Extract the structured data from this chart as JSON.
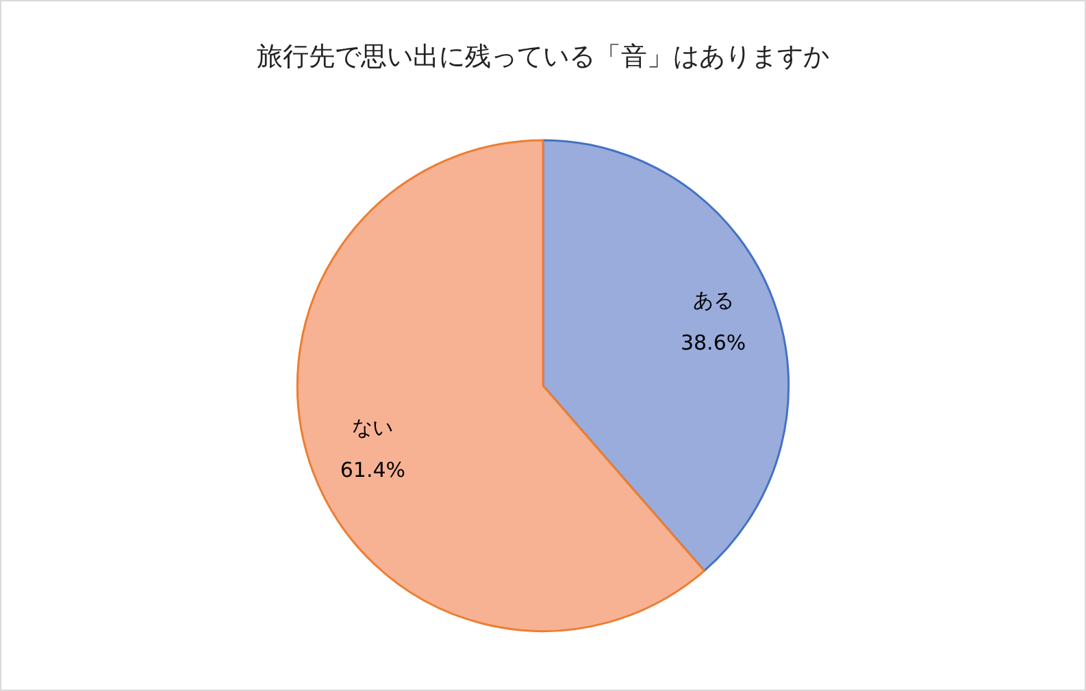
{
  "chart_data": {
    "type": "pie",
    "title": "旅行先で思い出に残っている「音」はありますか",
    "categories": [
      "ある",
      "ない"
    ],
    "values": [
      38.6,
      61.4
    ],
    "colors": [
      "#99acdc",
      "#f6b293"
    ],
    "value_labels": [
      "38.6%",
      "61.4%"
    ],
    "legend": false
  }
}
